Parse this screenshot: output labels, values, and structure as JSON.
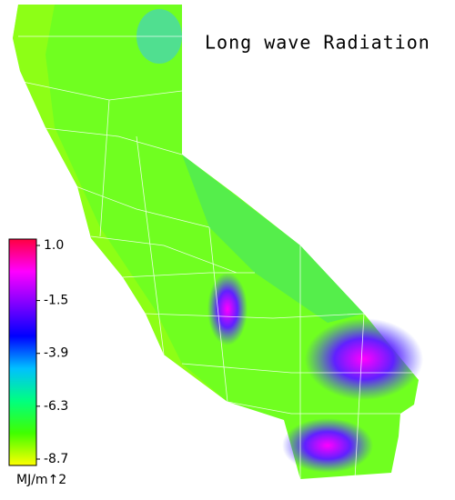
{
  "title": "Long wave Radiation",
  "colorbar": {
    "label": "MJ/m↑2",
    "lim": [
      -8.7,
      1.0
    ],
    "ticks": [
      {
        "value": 1,
        "label": "1.0"
      },
      -1.5,
      -3.9,
      -6.3,
      -8.7
    ],
    "colors": [
      "#ff0040",
      "#ff00ff",
      "#8000ff",
      "#0000ff",
      "#00c0ff",
      "#00ff80",
      "#40ff00",
      "#ffff00"
    ]
  }
}
